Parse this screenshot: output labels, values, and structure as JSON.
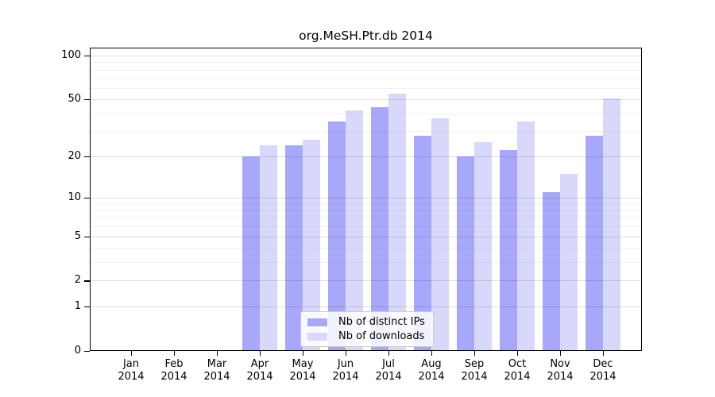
{
  "chart_data": {
    "type": "bar",
    "title": "org.MeSH.Ptr.db 2014",
    "y_scale": "log1p",
    "grid": true,
    "legend_position": "bottom-center",
    "ylim": [
      0,
      113
    ],
    "y_ticks": [
      0,
      1,
      2,
      5,
      10,
      20,
      50,
      100
    ],
    "y_minor_gridlines": [
      3,
      4,
      6,
      7,
      8,
      9,
      30,
      40,
      60,
      70,
      80,
      90
    ],
    "categories": [
      {
        "month": "Jan",
        "year": "2014"
      },
      {
        "month": "Feb",
        "year": "2014"
      },
      {
        "month": "Mar",
        "year": "2014"
      },
      {
        "month": "Apr",
        "year": "2014"
      },
      {
        "month": "May",
        "year": "2014"
      },
      {
        "month": "Jun",
        "year": "2014"
      },
      {
        "month": "Jul",
        "year": "2014"
      },
      {
        "month": "Aug",
        "year": "2014"
      },
      {
        "month": "Sep",
        "year": "2014"
      },
      {
        "month": "Oct",
        "year": "2014"
      },
      {
        "month": "Nov",
        "year": "2014"
      },
      {
        "month": "Dec",
        "year": "2014"
      }
    ],
    "series": [
      {
        "name": "Nb of distinct IPs",
        "color": "#a8a8fb",
        "values": [
          0,
          0,
          0,
          20,
          24,
          35,
          44,
          28,
          20,
          22,
          11,
          28
        ]
      },
      {
        "name": "Nb of downloads",
        "color": "#d8d8fb",
        "values": [
          0,
          0,
          0,
          24,
          26,
          42,
          55,
          37,
          25,
          35,
          15,
          51
        ]
      }
    ]
  },
  "colors": {
    "spine": "#000000",
    "major_grid": "rgba(0,0,0,0.13)",
    "minor_grid": "rgba(0,0,0,0.05)",
    "legend_border": "#cccccc",
    "legend_background": "rgba(255,255,255,0.85)",
    "text": "#000000",
    "background": "#ffffff"
  }
}
